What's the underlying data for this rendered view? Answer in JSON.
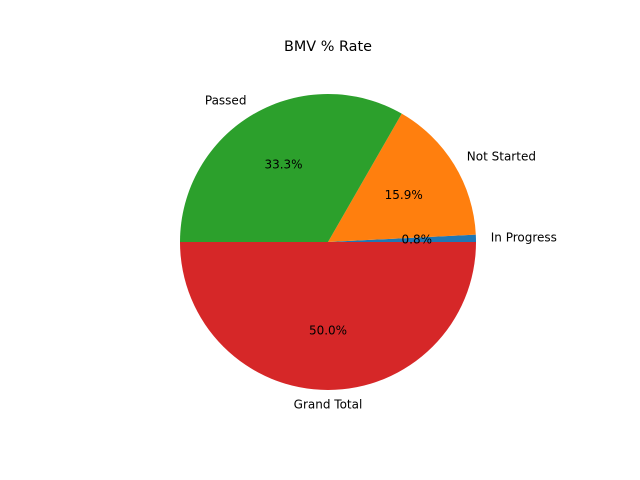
{
  "chart_data": {
    "type": "pie",
    "title": "BMV % Rate",
    "slices": [
      {
        "label": "In Progress",
        "percent": 0.8,
        "color": "#1f77b4"
      },
      {
        "label": "Not Started",
        "percent": 15.9,
        "color": "#ff7f0e"
      },
      {
        "label": "Passed",
        "percent": 33.3,
        "color": "#2ca02c"
      },
      {
        "label": "Grand Total",
        "percent": 50.0,
        "color": "#d62728"
      }
    ],
    "percent_labels": [
      "0.8%",
      "15.9%",
      "33.3%",
      "50.0%"
    ],
    "start_angle_deg": 0,
    "direction": "counterclockwise"
  }
}
